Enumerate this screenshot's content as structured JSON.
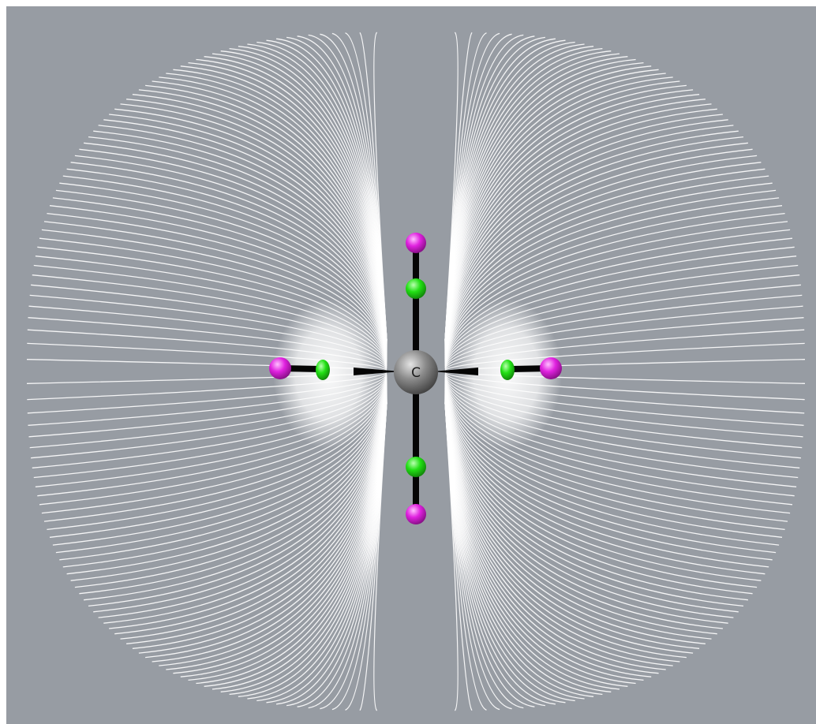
{
  "scene": {
    "background_color": "#979ca3",
    "field_line_color": "#ffffff",
    "bond_color": "#050505",
    "central_atom": {
      "label": "C",
      "color": "#7d7d7d"
    },
    "ligand_atom_colors": {
      "inner": "#22e015",
      "outer": "#e021df"
    },
    "ligands": [
      {
        "direction": "left"
      },
      {
        "direction": "right"
      },
      {
        "direction": "up"
      },
      {
        "direction": "down"
      }
    ]
  }
}
